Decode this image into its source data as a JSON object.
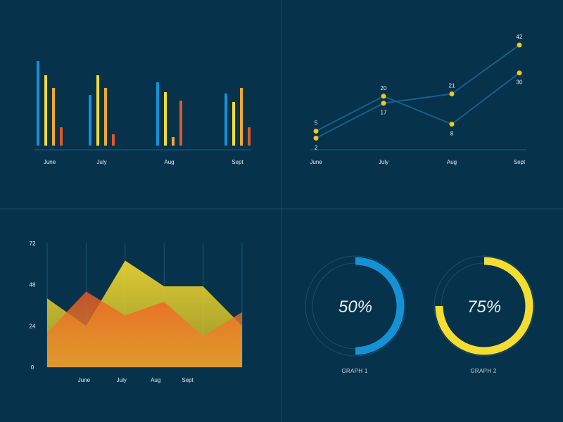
{
  "colors": {
    "background": "#06324b",
    "divider": "#1a4c6a",
    "blue": "#1591d6",
    "yellow": "#f5dc30",
    "amber": "#f3a829",
    "red": "#e2572b",
    "line": "#16608b",
    "dot": "#f5c518"
  },
  "chart_data": [
    {
      "type": "bar",
      "categories": [
        "June",
        "July",
        "Aug",
        "Sept"
      ],
      "series": [
        {
          "color": "#1591d6",
          "values": [
            60,
            36,
            45,
            37
          ]
        },
        {
          "color": "#f5dc30",
          "values": [
            50,
            50,
            38,
            31
          ]
        },
        {
          "color": "#f3a829",
          "values": [
            41,
            41,
            6,
            41
          ]
        },
        {
          "color": "#e2572b",
          "values": [
            13,
            8,
            32,
            13
          ]
        }
      ],
      "ylim": [
        0,
        60
      ],
      "grid": false
    },
    {
      "type": "line",
      "categories": [
        "June",
        "July",
        "Aug",
        "Sept"
      ],
      "series": [
        {
          "values": [
            5,
            20,
            8,
            30
          ],
          "labels": [
            "5",
            "20",
            "8",
            "30"
          ]
        },
        {
          "values": [
            2,
            17,
            21,
            42
          ],
          "labels": [
            "2",
            "17",
            "21",
            "42"
          ]
        }
      ],
      "ylim": [
        0,
        45
      ],
      "grid": false
    },
    {
      "type": "area",
      "categories": [
        "",
        "June",
        "July",
        "Aug",
        "Sept",
        ""
      ],
      "y_ticks": [
        "0",
        "24",
        "48",
        "72"
      ],
      "ylim": [
        0,
        72
      ],
      "series": [
        {
          "color": "#f5dc30",
          "values": [
            40,
            24,
            62,
            47,
            47,
            24
          ]
        },
        {
          "color": "#e2572b",
          "values": [
            20,
            44,
            30,
            38,
            18,
            32
          ]
        }
      ],
      "grid": "vertical"
    },
    {
      "type": "pie",
      "gauges": [
        {
          "label": "GRAPH 1",
          "percent_text": "50%",
          "value": 50,
          "color": "#1591d6"
        },
        {
          "label": "GRAPH 2",
          "percent_text": "75%",
          "value": 75,
          "color": "#f5dc30"
        }
      ]
    }
  ]
}
